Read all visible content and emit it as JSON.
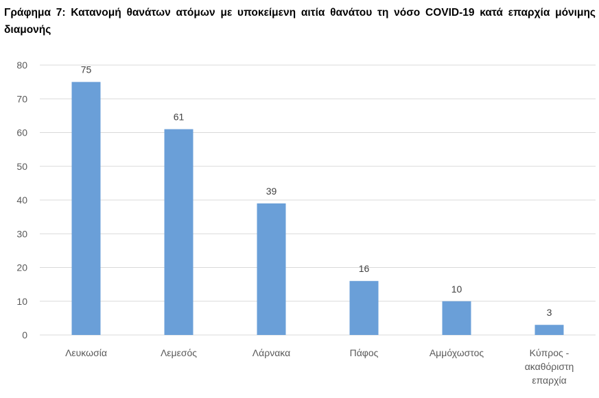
{
  "title": "Γράφημα 7: Κατανομή θανάτων ατόμων με υποκείμενη αιτία θανάτου τη νόσο COVID-19 κατά επαρχία μόνιμης διαμονής",
  "chart_data": {
    "type": "bar",
    "title": "Γράφημα 7: Κατανομή θανάτων ατόμων με υποκείμενη αιτία θανάτου τη νόσο COVID-19 κατά επαρχία μόνιμης διαμονής",
    "categories": [
      [
        "Λευκωσία"
      ],
      [
        "Λεμεσός"
      ],
      [
        "Λάρνακα"
      ],
      [
        "Πάφος"
      ],
      [
        "Αμμόχωστος"
      ],
      [
        "Κύπρος -",
        "ακαθόριστη",
        "επαρχία"
      ]
    ],
    "values": [
      75,
      61,
      39,
      16,
      10,
      3
    ],
    "data_labels": [
      "75",
      "61",
      "39",
      "16",
      "10",
      "3"
    ],
    "yticks": [
      0,
      10,
      20,
      30,
      40,
      50,
      60,
      70,
      80
    ],
    "ylim": [
      0,
      80
    ],
    "grid": true,
    "legend": "none",
    "bar_color": "#6a9fd8",
    "grid_color": "#d9d9d9"
  }
}
